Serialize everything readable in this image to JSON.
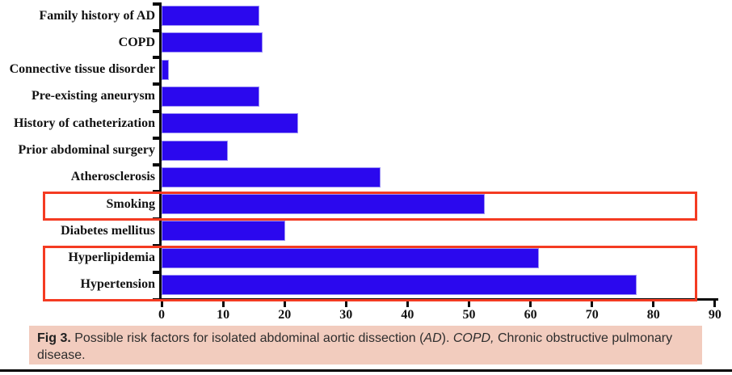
{
  "chart_data": {
    "type": "bar",
    "orientation": "horizontal",
    "categories": [
      "Family history of AD",
      "COPD",
      "Connective tissue disorder",
      "Pre-existing aneurysm",
      "History of catheterization",
      "Prior abdominal surgery",
      "Atherosclerosis",
      "Smoking",
      "Diabetes mellitus",
      "Hyperlipidemia",
      "Hypertension"
    ],
    "values": [
      15.7,
      16.1,
      0.9,
      15.7,
      21.9,
      10.5,
      35.3,
      52.3,
      19.8,
      61.1,
      77.0
    ],
    "xlabel": "",
    "ylabel": "",
    "xlim": [
      0,
      90
    ],
    "x_ticks": [
      0,
      10,
      20,
      30,
      40,
      50,
      60,
      70,
      80,
      90
    ],
    "grid": false,
    "legend": false,
    "bar_color": "#2b08ee",
    "highlight_color": "#f43b22",
    "highlighted_groups": [
      [
        "Smoking"
      ],
      [
        "Hyperlipidemia",
        "Hypertension"
      ]
    ]
  },
  "caption": {
    "fig_label": "Fig 3.",
    "text_1": " Possible risk factors for isolated abdominal aortic dissection (",
    "ad_italic": "AD",
    "text_2": "). ",
    "copd_italic": "COPD,",
    "text_3": " Chronic obstructive pulmonary disease."
  },
  "colors": {
    "bar": "#2b08ee",
    "highlight": "#f43b22",
    "caption_background": "#f2ccbe",
    "axis": "#0a0a0a"
  }
}
